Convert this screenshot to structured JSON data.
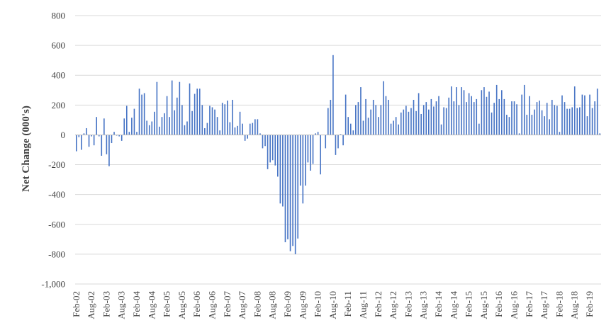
{
  "chart_data": {
    "type": "bar",
    "title": "",
    "xlabel": "",
    "ylabel": "Net Change (000's)",
    "ylim": [
      -1000,
      800
    ],
    "yticks": [
      800,
      600,
      400,
      200,
      0,
      -200,
      -400,
      -600,
      -800,
      -1000
    ],
    "ytick_labels": [
      "800",
      "600",
      "400",
      "200",
      "0",
      "-200",
      "-400",
      "-600",
      "-800",
      "-1,000"
    ],
    "grid": "horizontal",
    "legend": "none",
    "bar_color": "#4472C4",
    "xtick_labels": [
      "Feb-02",
      "Aug-02",
      "Feb-03",
      "Aug-03",
      "Feb-04",
      "Aug-04",
      "Feb-05",
      "Aug-05",
      "Feb-06",
      "Aug-06",
      "Feb-07",
      "Aug-07",
      "Feb-08",
      "Aug-08",
      "Feb-09",
      "Aug-09",
      "Feb-10",
      "Aug-10",
      "Feb-11",
      "Aug-11",
      "Feb-12",
      "Aug-12",
      "Feb-13",
      "Aug-13",
      "Feb-14",
      "Aug-14",
      "Feb-15",
      "Aug-15",
      "Feb-16",
      "Aug-16",
      "Feb-17",
      "Aug-17",
      "Feb-18",
      "Aug-18",
      "Feb-19"
    ],
    "x_start": "Feb-02",
    "x_end": "Feb-19",
    "values": [
      -110,
      -15,
      -100,
      10,
      45,
      -80,
      -10,
      -70,
      120,
      -10,
      -140,
      110,
      -130,
      -210,
      -55,
      20,
      -5,
      -10,
      -40,
      110,
      195,
      20,
      115,
      175,
      20,
      310,
      270,
      280,
      95,
      65,
      90,
      155,
      355,
      55,
      120,
      145,
      260,
      120,
      365,
      165,
      250,
      355,
      200,
      65,
      90,
      345,
      160,
      275,
      310,
      310,
      200,
      45,
      80,
      195,
      185,
      170,
      120,
      30,
      215,
      205,
      230,
      85,
      235,
      50,
      60,
      155,
      75,
      -40,
      -25,
      75,
      80,
      105,
      105,
      10,
      -90,
      -75,
      -230,
      -185,
      -170,
      -205,
      -280,
      -460,
      -480,
      -720,
      -700,
      -780,
      -745,
      -800,
      -695,
      -340,
      -460,
      -340,
      -185,
      -240,
      -195,
      10,
      20,
      -265,
      0,
      -90,
      180,
      235,
      535,
      -135,
      -90,
      5,
      -70,
      270,
      120,
      75,
      30,
      200,
      220,
      320,
      95,
      240,
      115,
      170,
      235,
      200,
      120,
      200,
      360,
      260,
      235,
      75,
      95,
      120,
      70,
      150,
      170,
      195,
      155,
      180,
      235,
      160,
      280,
      140,
      200,
      220,
      170,
      240,
      190,
      225,
      260,
      70,
      185,
      180,
      250,
      325,
      225,
      320,
      200,
      320,
      300,
      220,
      280,
      260,
      220,
      240,
      75,
      300,
      320,
      255,
      290,
      150,
      215,
      335,
      240,
      300,
      240,
      135,
      120,
      225,
      225,
      205,
      10,
      270,
      335,
      135,
      260,
      135,
      170,
      220,
      230,
      165,
      125,
      215,
      105,
      235,
      200,
      195,
      20,
      265,
      220,
      175,
      175,
      185,
      325,
      180,
      185,
      270,
      265,
      125,
      270,
      180,
      225,
      310,
      10
    ]
  }
}
